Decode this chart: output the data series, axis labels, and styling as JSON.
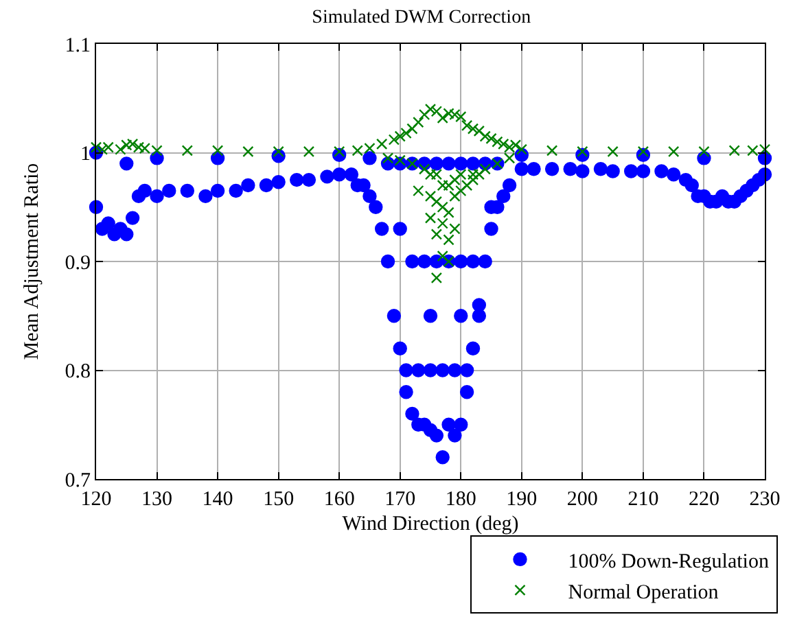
{
  "chart_data": {
    "type": "scatter",
    "title": "Simulated DWM Correction",
    "xlabel": "Wind Direction (deg)",
    "ylabel": "Mean Adjustment Ratio",
    "xlim": [
      120,
      230
    ],
    "xticks": [
      120,
      130,
      140,
      150,
      160,
      170,
      180,
      190,
      200,
      210,
      220,
      230
    ],
    "ylim": [
      0.7,
      1.1
    ],
    "yticks": [
      0.7,
      0.8,
      0.9,
      1,
      1.1
    ],
    "grid": true,
    "legend": "bottom right",
    "series": [
      {
        "name": "100% Down-Regulation",
        "color": "#0000ff",
        "marker": "circle",
        "x": [
          120,
          121,
          122,
          123,
          124,
          125,
          126,
          127,
          128,
          130,
          132,
          135,
          138,
          140,
          143,
          145,
          148,
          150,
          153,
          155,
          158,
          160,
          162,
          163,
          164,
          165,
          166,
          167,
          168,
          169,
          170,
          171,
          172,
          173,
          174,
          175,
          176,
          177,
          178,
          179,
          180,
          181,
          182,
          183,
          184,
          185,
          186,
          187,
          188,
          190,
          192,
          195,
          198,
          200,
          203,
          205,
          208,
          210,
          213,
          215,
          217,
          218,
          219,
          220,
          221,
          222,
          223,
          224,
          225,
          226,
          227,
          228,
          229,
          230,
          120,
          125,
          130,
          140,
          150,
          160,
          165,
          168,
          170,
          172,
          174,
          176,
          178,
          180,
          182,
          184,
          186,
          190,
          200,
          210,
          220,
          230,
          171,
          173,
          175,
          177,
          179,
          181,
          183,
          172,
          174,
          176,
          178,
          180,
          182,
          170,
          175,
          180,
          185
        ],
        "values": [
          0.95,
          0.93,
          0.935,
          0.925,
          0.93,
          0.925,
          0.94,
          0.96,
          0.965,
          0.96,
          0.965,
          0.965,
          0.96,
          0.965,
          0.965,
          0.97,
          0.97,
          0.973,
          0.975,
          0.975,
          0.978,
          0.98,
          0.98,
          0.97,
          0.97,
          0.96,
          0.95,
          0.93,
          0.9,
          0.85,
          0.82,
          0.78,
          0.76,
          0.75,
          0.75,
          0.745,
          0.74,
          0.72,
          0.75,
          0.74,
          0.75,
          0.78,
          0.82,
          0.86,
          0.9,
          0.93,
          0.95,
          0.96,
          0.97,
          0.985,
          0.985,
          0.985,
          0.985,
          0.983,
          0.985,
          0.983,
          0.983,
          0.983,
          0.983,
          0.98,
          0.975,
          0.97,
          0.96,
          0.96,
          0.955,
          0.955,
          0.96,
          0.955,
          0.955,
          0.96,
          0.965,
          0.97,
          0.975,
          0.98,
          1.0,
          0.99,
          0.995,
          0.995,
          0.997,
          0.998,
          0.995,
          0.99,
          0.99,
          0.99,
          0.99,
          0.99,
          0.99,
          0.99,
          0.99,
          0.99,
          0.99,
          0.998,
          0.998,
          0.998,
          0.995,
          0.995,
          0.8,
          0.8,
          0.8,
          0.8,
          0.8,
          0.8,
          0.85,
          0.9,
          0.9,
          0.9,
          0.9,
          0.9,
          0.9,
          0.93,
          0.85,
          0.85,
          0.95
        ]
      },
      {
        "name": "Normal Operation",
        "color": "#008000",
        "marker": "cross",
        "x": [
          120,
          121,
          122,
          124,
          125,
          126,
          127,
          128,
          130,
          135,
          140,
          145,
          150,
          155,
          160,
          163,
          165,
          167,
          169,
          170,
          171,
          172,
          173,
          174,
          175,
          176,
          177,
          178,
          179,
          180,
          181,
          182,
          183,
          184,
          185,
          186,
          187,
          188,
          189,
          190,
          195,
          200,
          205,
          210,
          215,
          220,
          225,
          228,
          230,
          168,
          170,
          172,
          174,
          175,
          176,
          177,
          178,
          179,
          180,
          182,
          184,
          186,
          188,
          173,
          175,
          176,
          177,
          178,
          179,
          180,
          181,
          182,
          183,
          175,
          176,
          177,
          178,
          177,
          178,
          179,
          176
        ],
        "values": [
          1.005,
          1.003,
          1.005,
          1.003,
          1.007,
          1.008,
          1.005,
          1.004,
          1.002,
          1.002,
          1.002,
          1.001,
          1.001,
          1.001,
          1.001,
          1.002,
          1.004,
          1.008,
          1.012,
          1.015,
          1.018,
          1.022,
          1.028,
          1.035,
          1.04,
          1.038,
          1.032,
          1.036,
          1.035,
          1.033,
          1.025,
          1.022,
          1.02,
          1.015,
          1.013,
          1.01,
          1.008,
          1.005,
          1.007,
          1.003,
          1.002,
          1.001,
          1.001,
          1.001,
          1.001,
          1.001,
          1.002,
          1.002,
          1.003,
          0.995,
          0.993,
          0.99,
          0.985,
          0.98,
          0.98,
          0.97,
          0.97,
          0.975,
          0.98,
          0.98,
          0.985,
          0.99,
          0.995,
          0.965,
          0.96,
          0.955,
          0.95,
          0.945,
          0.96,
          0.965,
          0.97,
          0.975,
          0.98,
          0.94,
          0.925,
          0.935,
          0.92,
          0.905,
          0.9,
          0.93,
          0.885
        ]
      }
    ]
  }
}
